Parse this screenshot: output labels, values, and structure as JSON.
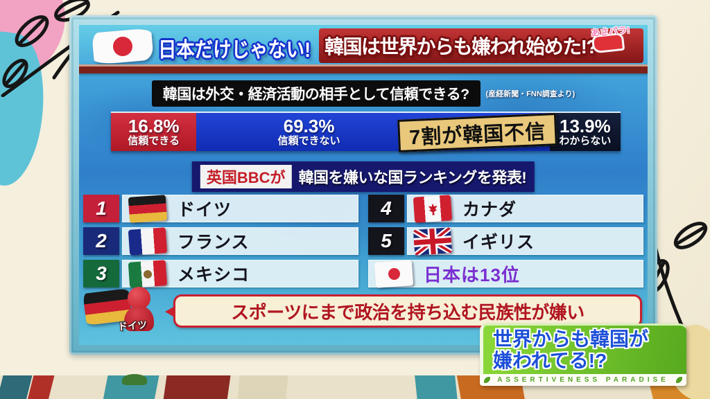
{
  "header": {
    "logo": "あさパラ!",
    "title_left": "日本だけじゃない!",
    "title_right": "韓国は世界からも嫌われ始めた!?"
  },
  "colors": {
    "trust_red": "#c5203a",
    "distrust_blue": "#1b38c8",
    "unknown_dark": "#0e1428",
    "annotation_tan": "#e9c87c",
    "board_blue": "#2f7fca",
    "badge_green": "#6ab82e",
    "japan_purple": "#7a2fd0",
    "title_band_red": "#a32424"
  },
  "chart_data": [
    {
      "type": "bar",
      "layout": "horizontal-stacked-percent",
      "title": "韓国は外交・経済活動の相手として信頼できる?",
      "source": "(産経新聞・FNN調査より)",
      "unit": "%",
      "categories": [
        "信頼できる",
        "信頼できない",
        "わからない"
      ],
      "values": [
        16.8,
        69.3,
        13.9
      ],
      "segments": [
        {
          "label": "信頼できる",
          "value": 16.8,
          "value_label": "16.8%",
          "color": "#c5203a"
        },
        {
          "label": "信頼できない",
          "value": 69.3,
          "value_label": "69.3%",
          "color": "#1b38c8"
        },
        {
          "label": "わからない",
          "value": 13.9,
          "value_label": "13.9%",
          "color": "#0e1428"
        }
      ],
      "annotation": "7割が韓国不信"
    },
    {
      "type": "table",
      "title": "韓国を嫌いな国ランキング",
      "source_label": "英国BBCが",
      "headline": "韓国を嫌いな国ランキングを発表!",
      "rows": [
        {
          "rank": "1",
          "country": "ドイツ",
          "flag": "germany"
        },
        {
          "rank": "2",
          "country": "フランス",
          "flag": "france"
        },
        {
          "rank": "3",
          "country": "メキシコ",
          "flag": "mexico"
        },
        {
          "rank": "4",
          "country": "カナダ",
          "flag": "canada"
        },
        {
          "rank": "5",
          "country": "イギリス",
          "flag": "uk"
        }
      ],
      "footnote": "日本は13位",
      "footnote_flag": "japan"
    }
  ],
  "quote": {
    "speaker": "ドイツ",
    "speaker_flag": "germany",
    "text": "スポーツにまで政治を持ち込む民族性が嫌い"
  },
  "badge": {
    "line1": "世界からも韓国が",
    "line2": "嫌われてる!?",
    "subtitle": "ASSERTIVENESS PARADISE"
  }
}
